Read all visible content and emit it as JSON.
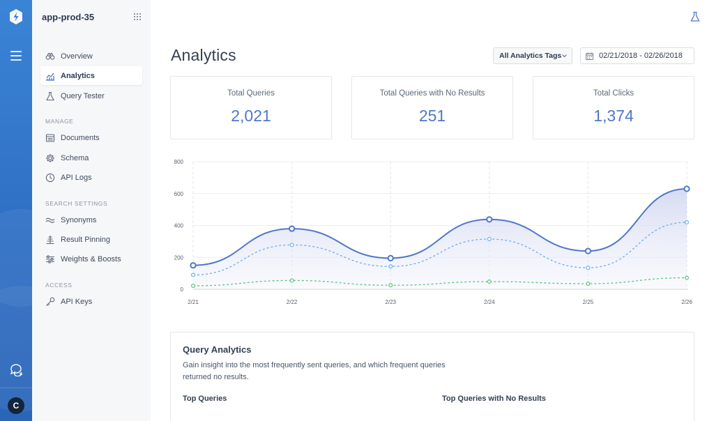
{
  "app": {
    "engine_name": "app-prod-35",
    "user_initial": "C"
  },
  "sidebar": {
    "items": [
      {
        "label": "Overview",
        "icon": "binoculars-icon",
        "active": false
      },
      {
        "label": "Analytics",
        "icon": "analytics-chart-icon",
        "active": true
      },
      {
        "label": "Query Tester",
        "icon": "flask-icon",
        "active": false
      }
    ],
    "sections": [
      {
        "title": "MANAGE",
        "items": [
          {
            "label": "Documents",
            "icon": "documents-icon"
          },
          {
            "label": "Schema",
            "icon": "gear-icon"
          },
          {
            "label": "API Logs",
            "icon": "clock-icon"
          }
        ]
      },
      {
        "title": "SEARCH SETTINGS",
        "items": [
          {
            "label": "Synonyms",
            "icon": "wave-icon"
          },
          {
            "label": "Result Pinning",
            "icon": "pin-icon"
          },
          {
            "label": "Weights & Boosts",
            "icon": "sliders-icon"
          }
        ]
      },
      {
        "title": "ACCESS",
        "items": [
          {
            "label": "API Keys",
            "icon": "key-icon"
          }
        ]
      }
    ]
  },
  "header": {
    "title": "Analytics",
    "tags_filter": "All Analytics Tags",
    "date_range": "02/21/2018 - 02/26/2018"
  },
  "stats": [
    {
      "label": "Total Queries",
      "value": "2,021"
    },
    {
      "label": "Total Queries with No Results",
      "value": "251"
    },
    {
      "label": "Total Clicks",
      "value": "1,374"
    }
  ],
  "chart_data": {
    "type": "line",
    "x": [
      "2/21",
      "2/22",
      "2/23",
      "2/24",
      "2/25",
      "2/26"
    ],
    "yticks": [
      "800",
      "600",
      "400",
      "200",
      "0"
    ],
    "ylim": [
      0,
      800
    ],
    "grid": true,
    "series": [
      {
        "values": [
          150,
          380,
          195,
          438,
          240,
          630
        ],
        "color": "#4f77c8",
        "style": "solid",
        "area": true
      },
      {
        "values": [
          90,
          278,
          143,
          315,
          135,
          420
        ],
        "color": "#6aaee8",
        "style": "dashed",
        "area": false
      },
      {
        "values": [
          22,
          55,
          25,
          48,
          35,
          72
        ],
        "color": "#5cc47a",
        "style": "dashed",
        "area": false
      }
    ]
  },
  "query_analytics": {
    "title": "Query Analytics",
    "description": "Gain insight into the most frequently sent queries, and which frequent queries returned no results.",
    "top_queries_label": "Top Queries",
    "top_no_results_label": "Top Queries with No Results"
  }
}
